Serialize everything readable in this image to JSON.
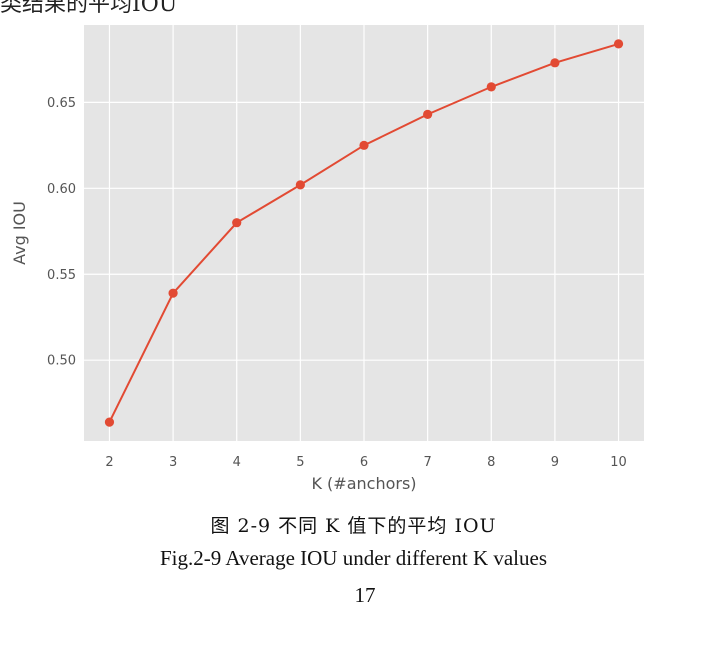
{
  "page": {
    "top_text": "类结果的平均IOU",
    "caption_cn": "图 2-9  不同 K 值下的平均 IOU",
    "caption_en": "Fig.2-9 Average IOU under different K values",
    "page_number": "17"
  },
  "chart_data": {
    "type": "line",
    "title": "",
    "xlabel": "K (#anchors)",
    "ylabel": "Avg IOU",
    "x": [
      2,
      3,
      4,
      5,
      6,
      7,
      8,
      9,
      10
    ],
    "series": [
      {
        "values": [
          0.464,
          0.539,
          0.58,
          0.602,
          0.625,
          0.643,
          0.659,
          0.673,
          0.684
        ]
      }
    ],
    "x_ticks": [
      "2",
      "3",
      "4",
      "5",
      "6",
      "7",
      "8",
      "9",
      "10"
    ],
    "y_ticks": [
      "0.50",
      "0.55",
      "0.60",
      "0.65"
    ],
    "y_tick_values": [
      0.5,
      0.55,
      0.6,
      0.65
    ],
    "xlim": [
      1.6,
      10.4
    ],
    "ylim": [
      0.453,
      0.695
    ],
    "grid": true,
    "style": "ggplot",
    "colors": {
      "background": "#e5e5e5",
      "grid": "#ffffff",
      "line": "#e24a33"
    }
  }
}
